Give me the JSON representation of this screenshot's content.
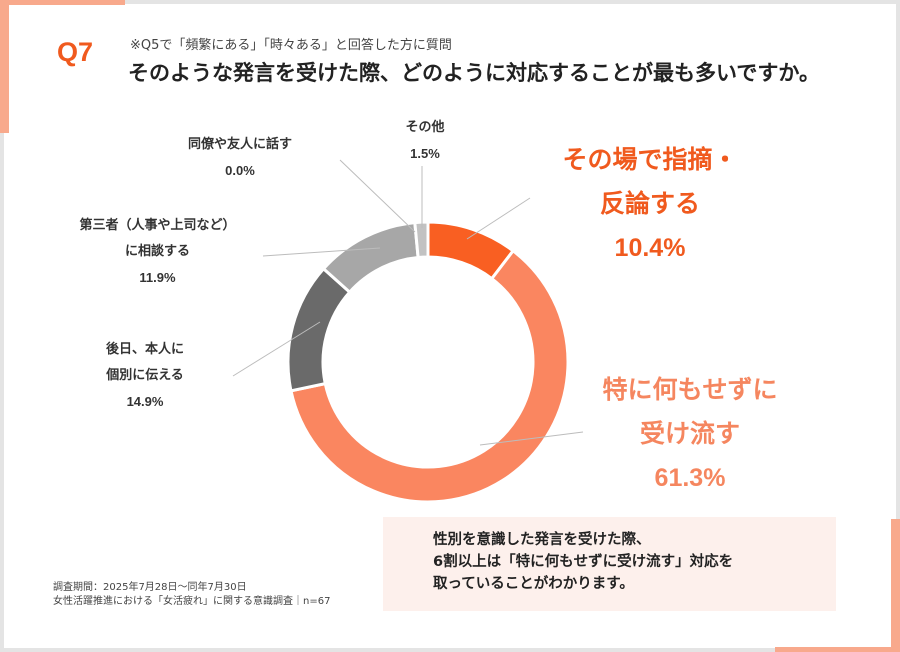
{
  "header": {
    "q_label": "Q7",
    "sub_note": "※Q5で「頻繁にある」「時々ある」と回答した方に質問",
    "question": "そのような発言を受けた際、どのように対応することが最も多いですか。"
  },
  "chart_data": {
    "type": "pie",
    "donut": true,
    "title": "そのような発言を受けた際、どのように対応することが最も多いですか。",
    "slices": [
      {
        "label": "その場で指摘・反論する",
        "value": 10.4,
        "color": "#f95f22"
      },
      {
        "label": "特に何もせずに受け流す",
        "value": 61.3,
        "color": "#fa8660"
      },
      {
        "label": "後日、本人に個別に伝える",
        "value": 14.9,
        "color": "#6a6a6a"
      },
      {
        "label": "第三者（人事や上司など）に相談する",
        "value": 11.9,
        "color": "#a7a7a7"
      },
      {
        "label": "同僚や友人に話す",
        "value": 0.0,
        "color": "#808080"
      },
      {
        "label": "その他",
        "value": 1.5,
        "color": "#c2c2c2"
      }
    ]
  },
  "labels": {
    "point_out": {
      "line1": "その場で指摘・",
      "line2": "反論する",
      "pct": "10.4%"
    },
    "let_pass": {
      "line1": "特に何もせずに",
      "line2": "受け流す",
      "pct": "61.3%"
    },
    "later": {
      "line1": "後日、本人に",
      "line2": "個別に伝える",
      "pct": "14.9%"
    },
    "third_party": {
      "line1": "第三者（人事や上司など）",
      "line2": "に相談する",
      "pct": "11.9%"
    },
    "friends": {
      "line1": "同僚や友人に話す",
      "pct": "0.0%"
    },
    "other": {
      "line1": "その他",
      "pct": "1.5%"
    }
  },
  "summary": {
    "line1": "性別を意識した発言を受けた際、",
    "line2": "6割以上は「特に何もせずに受け流す」対応を",
    "line3": "取っていることがわかります。"
  },
  "footer": {
    "line1": "調査期間：2025年7月28日～同年7月30日",
    "line2": "女性活躍推進における「女活疲れ」に関する意識調査｜n=67"
  }
}
